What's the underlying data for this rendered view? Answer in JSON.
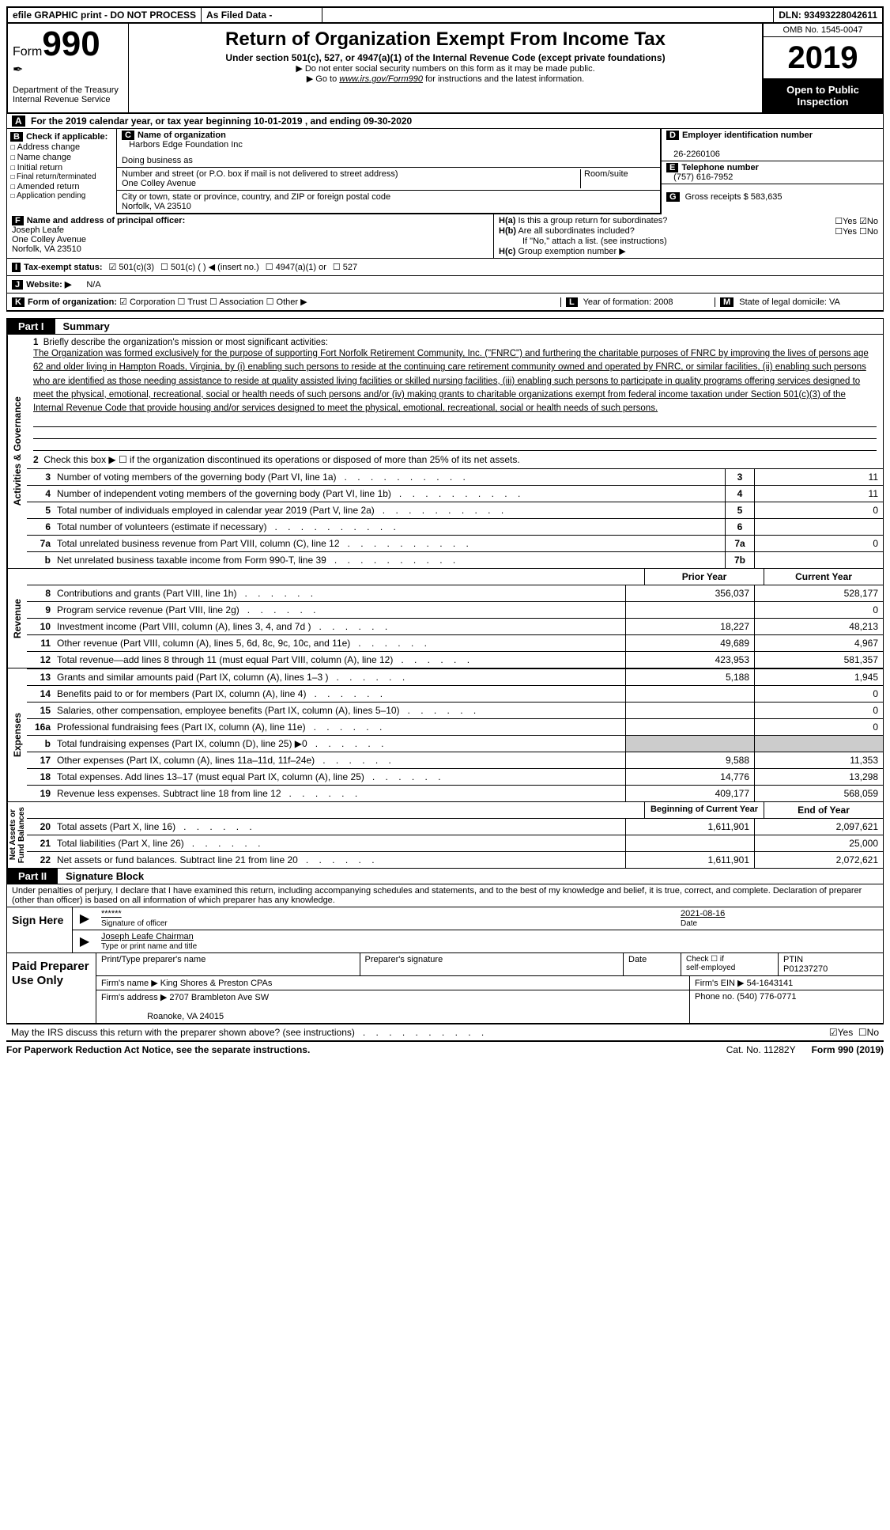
{
  "topbar": {
    "efile": "efile GRAPHIC print - DO NOT PROCESS",
    "asfiled": "As Filed Data -",
    "dln_label": "DLN:",
    "dln": "93493228042611"
  },
  "header": {
    "form_label": "Form",
    "form_no": "990",
    "dept": "Department of the Treasury\nInternal Revenue Service",
    "title": "Return of Organization Exempt From Income Tax",
    "subtitle": "Under section 501(c), 527, or 4947(a)(1) of the Internal Revenue Code (except private foundations)",
    "note1": "▶ Do not enter social security numbers on this form as it may be made public.",
    "note2_pre": "▶ Go to ",
    "note2_link": "www.irs.gov/Form990",
    "note2_post": " for instructions and the latest information.",
    "omb": "OMB No. 1545-0047",
    "year": "2019",
    "open": "Open to Public Inspection"
  },
  "sectionA": "For the 2019 calendar year, or tax year beginning 10-01-2019  , and ending 09-30-2020",
  "boxB": {
    "title": "Check if applicable:",
    "items": [
      "Address change",
      "Name change",
      "Initial return",
      "Final return/terminated",
      "Amended return",
      "Application pending"
    ]
  },
  "boxC": {
    "name_lbl": "Name of organization",
    "name": "Harbors Edge Foundation Inc",
    "dba_lbl": "Doing business as",
    "dba": "",
    "street_lbl": "Number and street (or P.O. box if mail is not delivered to street address)",
    "room_lbl": "Room/suite",
    "street": "One Colley Avenue",
    "city_lbl": "City or town, state or province, country, and ZIP or foreign postal code",
    "city": "Norfolk, VA  23510"
  },
  "boxD": {
    "ein_lbl": "Employer identification number",
    "ein": "26-2260106",
    "tel_lbl": "Telephone number",
    "tel": "(757) 616-7952",
    "gross_lbl": "Gross receipts $",
    "gross": "583,635"
  },
  "boxF": {
    "lbl": "Name and address of principal officer:",
    "name": "Joseph Leafe",
    "street": "One Colley Avenue",
    "city": "Norfolk, VA  23510"
  },
  "boxH": {
    "a": "Is this a group return for subordinates?",
    "b": "Are all subordinates included?",
    "b_note": "If \"No,\" attach a list. (see instructions)",
    "c": "Group exemption number ▶"
  },
  "rowI": {
    "lbl": "Tax-exempt status:",
    "opts": [
      "501(c)(3)",
      "501(c) (   ) ◀ (insert no.)",
      "4947(a)(1) or",
      "527"
    ]
  },
  "rowJ": {
    "lbl": "Website: ▶",
    "val": "N/A"
  },
  "rowK": {
    "lbl": "Form of organization:",
    "opts": [
      "Corporation",
      "Trust",
      "Association",
      "Other ▶"
    ],
    "L": "Year of formation: 2008",
    "M": "State of legal domicile: VA"
  },
  "part1": {
    "tag": "Part I",
    "title": "Summary",
    "mission_lbl": "Briefly describe the organization's mission or most significant activities:",
    "mission": "The Organization was formed exclusively for the purpose of supporting Fort Norfolk Retirement Community, Inc. (\"FNRC\") and furthering the charitable purposes of FNRC by improving the lives of persons age 62 and older living in Hampton Roads, Virginia, by (i) enabling such persons to reside at the continuing care retirement community owned and operated by FNRC, or similar facilities, (ii) enabling such persons who are identified as those needing assistance to reside at quality assisted living facilities or skilled nursing facilities, (iii) enabling such persons to participate in quality programs offering services designed to meet the physical, emotional, recreational, social or health needs of such persons and/or (iv) making grants to charitable organizations exempt from federal income taxation under Section 501(c)(3) of the Internal Revenue Code that provide housing and/or services designed to meet the physical, emotional, recreational, social or health needs of such persons.",
    "line2": "Check this box ▶ ☐ if the organization discontinued its operations or disposed of more than 25% of its net assets.",
    "side_ag": "Activities & Governance",
    "side_rev": "Revenue",
    "side_exp": "Expenses",
    "side_net": "Net Assets or\nFund Balances",
    "lines_ag": [
      {
        "n": "3",
        "d": "Number of voting members of the governing body (Part VI, line 1a)",
        "box": "3",
        "v": "11"
      },
      {
        "n": "4",
        "d": "Number of independent voting members of the governing body (Part VI, line 1b)",
        "box": "4",
        "v": "11"
      },
      {
        "n": "5",
        "d": "Total number of individuals employed in calendar year 2019 (Part V, line 2a)",
        "box": "5",
        "v": "0"
      },
      {
        "n": "6",
        "d": "Total number of volunteers (estimate if necessary)",
        "box": "6",
        "v": ""
      },
      {
        "n": "7a",
        "d": "Total unrelated business revenue from Part VIII, column (C), line 12",
        "box": "7a",
        "v": "0"
      },
      {
        "n": "b",
        "d": "Net unrelated business taxable income from Form 990-T, line 39",
        "box": "7b",
        "v": ""
      }
    ],
    "hdr_prior": "Prior Year",
    "hdr_curr": "Current Year",
    "lines_rev": [
      {
        "n": "8",
        "d": "Contributions and grants (Part VIII, line 1h)",
        "p": "356,037",
        "c": "528,177"
      },
      {
        "n": "9",
        "d": "Program service revenue (Part VIII, line 2g)",
        "p": "",
        "c": "0"
      },
      {
        "n": "10",
        "d": "Investment income (Part VIII, column (A), lines 3, 4, and 7d )",
        "p": "18,227",
        "c": "48,213"
      },
      {
        "n": "11",
        "d": "Other revenue (Part VIII, column (A), lines 5, 6d, 8c, 9c, 10c, and 11e)",
        "p": "49,689",
        "c": "4,967"
      },
      {
        "n": "12",
        "d": "Total revenue—add lines 8 through 11 (must equal Part VIII, column (A), line 12)",
        "p": "423,953",
        "c": "581,357"
      }
    ],
    "lines_exp": [
      {
        "n": "13",
        "d": "Grants and similar amounts paid (Part IX, column (A), lines 1–3 )",
        "p": "5,188",
        "c": "1,945"
      },
      {
        "n": "14",
        "d": "Benefits paid to or for members (Part IX, column (A), line 4)",
        "p": "",
        "c": "0"
      },
      {
        "n": "15",
        "d": "Salaries, other compensation, employee benefits (Part IX, column (A), lines 5–10)",
        "p": "",
        "c": "0"
      },
      {
        "n": "16a",
        "d": "Professional fundraising fees (Part IX, column (A), line 11e)",
        "p": "",
        "c": "0"
      },
      {
        "n": "b",
        "d": "Total fundraising expenses (Part IX, column (D), line 25) ▶0",
        "p": null,
        "c": null
      },
      {
        "n": "17",
        "d": "Other expenses (Part IX, column (A), lines 11a–11d, 11f–24e)",
        "p": "9,588",
        "c": "11,353"
      },
      {
        "n": "18",
        "d": "Total expenses. Add lines 13–17 (must equal Part IX, column (A), line 25)",
        "p": "14,776",
        "c": "13,298"
      },
      {
        "n": "19",
        "d": "Revenue less expenses. Subtract line 18 from line 12",
        "p": "409,177",
        "c": "568,059"
      }
    ],
    "hdr_begin": "Beginning of Current Year",
    "hdr_end": "End of Year",
    "lines_net": [
      {
        "n": "20",
        "d": "Total assets (Part X, line 16)",
        "p": "1,611,901",
        "c": "2,097,621"
      },
      {
        "n": "21",
        "d": "Total liabilities (Part X, line 26)",
        "p": "",
        "c": "25,000"
      },
      {
        "n": "22",
        "d": "Net assets or fund balances. Subtract line 21 from line 20",
        "p": "1,611,901",
        "c": "2,072,621"
      }
    ]
  },
  "part2": {
    "tag": "Part II",
    "title": "Signature Block",
    "intro": "Under penalties of perjury, I declare that I have examined this return, including accompanying schedules and statements, and to the best of my knowledge and belief, it is true, correct, and complete. Declaration of preparer (other than officer) is based on all information of which preparer has any knowledge.",
    "sign_here": "Sign Here",
    "stars": "******",
    "sig_lbl": "Signature of officer",
    "date": "2021-08-16",
    "date_lbl": "Date",
    "officer": "Joseph Leafe Chairman",
    "officer_lbl": "Type or print name and title"
  },
  "prep": {
    "title": "Paid Preparer Use Only",
    "h1": "Print/Type preparer's name",
    "h2": "Preparer's signature",
    "h3": "Date",
    "h4_a": "Check ☐ if",
    "h4_b": "self-employed",
    "h5_lbl": "PTIN",
    "h5": "P01237270",
    "firm_name_lbl": "Firm's name    ▶",
    "firm_name": "King Shores & Preston CPAs",
    "firm_ein_lbl": "Firm's EIN ▶",
    "firm_ein": "54-1643141",
    "firm_addr_lbl": "Firm's address ▶",
    "firm_addr": "2707 Brambleton Ave SW",
    "firm_city": "Roanoke, VA  24015",
    "phone_lbl": "Phone no.",
    "phone": "(540) 776-0771"
  },
  "footer": {
    "q": "May the IRS discuss this return with the preparer shown above? (see instructions)",
    "yes": "Yes",
    "no": "No"
  },
  "final": {
    "l": "For Paperwork Reduction Act Notice, see the separate instructions.",
    "c": "Cat. No. 11282Y",
    "r": "Form 990 (2019)"
  }
}
